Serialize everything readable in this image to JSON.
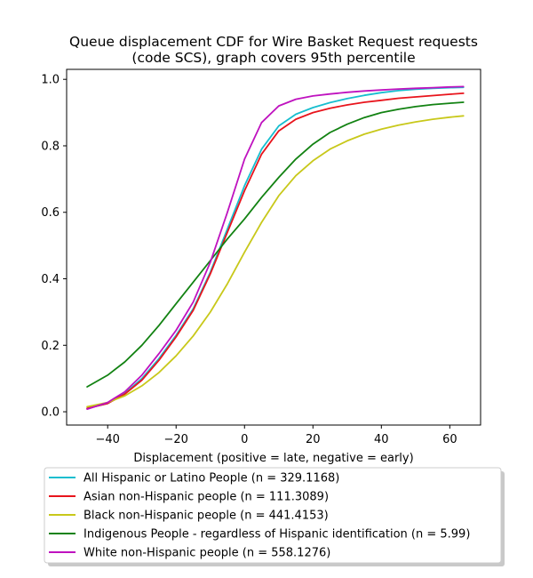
{
  "chart_data": {
    "type": "line",
    "title": "Queue displacement CDF for Wire Basket Request  requests",
    "subtitle": "(code SCS), graph covers 95th percentile",
    "xlabel": "Displacement (positive = late, negative = early)",
    "ylabel": "",
    "xlim": [
      -52,
      69
    ],
    "ylim": [
      -0.04,
      1.03
    ],
    "x_ticks": [
      -40,
      -20,
      0,
      20,
      40,
      60
    ],
    "y_ticks": [
      0.0,
      0.2,
      0.4,
      0.6,
      0.8,
      1.0
    ],
    "x_tick_labels": [
      "−40",
      "−20",
      "0",
      "20",
      "40",
      "60"
    ],
    "y_tick_labels": [
      "0.0",
      "0.2",
      "0.4",
      "0.6",
      "0.8",
      "1.0"
    ],
    "grid": false,
    "legend_position": "below",
    "x": [
      -46,
      -40,
      -35,
      -30,
      -25,
      -20,
      -15,
      -10,
      -5,
      0,
      5,
      10,
      15,
      20,
      25,
      30,
      35,
      40,
      45,
      50,
      55,
      60,
      64
    ],
    "series": [
      {
        "name": "All Hispanic or Latino People (n = 329.1168)",
        "color": "#17becf",
        "values": [
          0.01,
          0.025,
          0.055,
          0.1,
          0.16,
          0.23,
          0.31,
          0.42,
          0.55,
          0.68,
          0.79,
          0.86,
          0.895,
          0.915,
          0.93,
          0.942,
          0.952,
          0.96,
          0.966,
          0.97,
          0.973,
          0.975,
          0.976
        ]
      },
      {
        "name": "Asian non-Hispanic people (n = 111.3089)",
        "color": "#e8141c",
        "values": [
          0.01,
          0.025,
          0.053,
          0.095,
          0.155,
          0.225,
          0.305,
          0.415,
          0.54,
          0.665,
          0.775,
          0.845,
          0.88,
          0.9,
          0.913,
          0.923,
          0.931,
          0.937,
          0.943,
          0.947,
          0.951,
          0.955,
          0.958
        ]
      },
      {
        "name": "Black non-Hispanic people (n = 441.4153)",
        "color": "#c8c81a",
        "values": [
          0.015,
          0.028,
          0.048,
          0.078,
          0.118,
          0.168,
          0.228,
          0.3,
          0.385,
          0.48,
          0.57,
          0.65,
          0.71,
          0.755,
          0.79,
          0.815,
          0.835,
          0.85,
          0.862,
          0.872,
          0.88,
          0.886,
          0.89
        ]
      },
      {
        "name": "Indigenous People - regardless of Hispanic identification (n = 5.99)",
        "color": "#128212",
        "values": [
          0.075,
          0.11,
          0.15,
          0.2,
          0.26,
          0.325,
          0.39,
          0.455,
          0.52,
          0.58,
          0.645,
          0.705,
          0.76,
          0.805,
          0.84,
          0.865,
          0.885,
          0.9,
          0.91,
          0.918,
          0.924,
          0.928,
          0.931
        ]
      },
      {
        "name": "White non-Hispanic people (n = 558.1276)",
        "color": "#bf12bf",
        "values": [
          0.008,
          0.028,
          0.06,
          0.11,
          0.175,
          0.245,
          0.33,
          0.45,
          0.6,
          0.76,
          0.87,
          0.92,
          0.94,
          0.95,
          0.956,
          0.961,
          0.965,
          0.968,
          0.971,
          0.973,
          0.975,
          0.977,
          0.978
        ]
      }
    ]
  }
}
